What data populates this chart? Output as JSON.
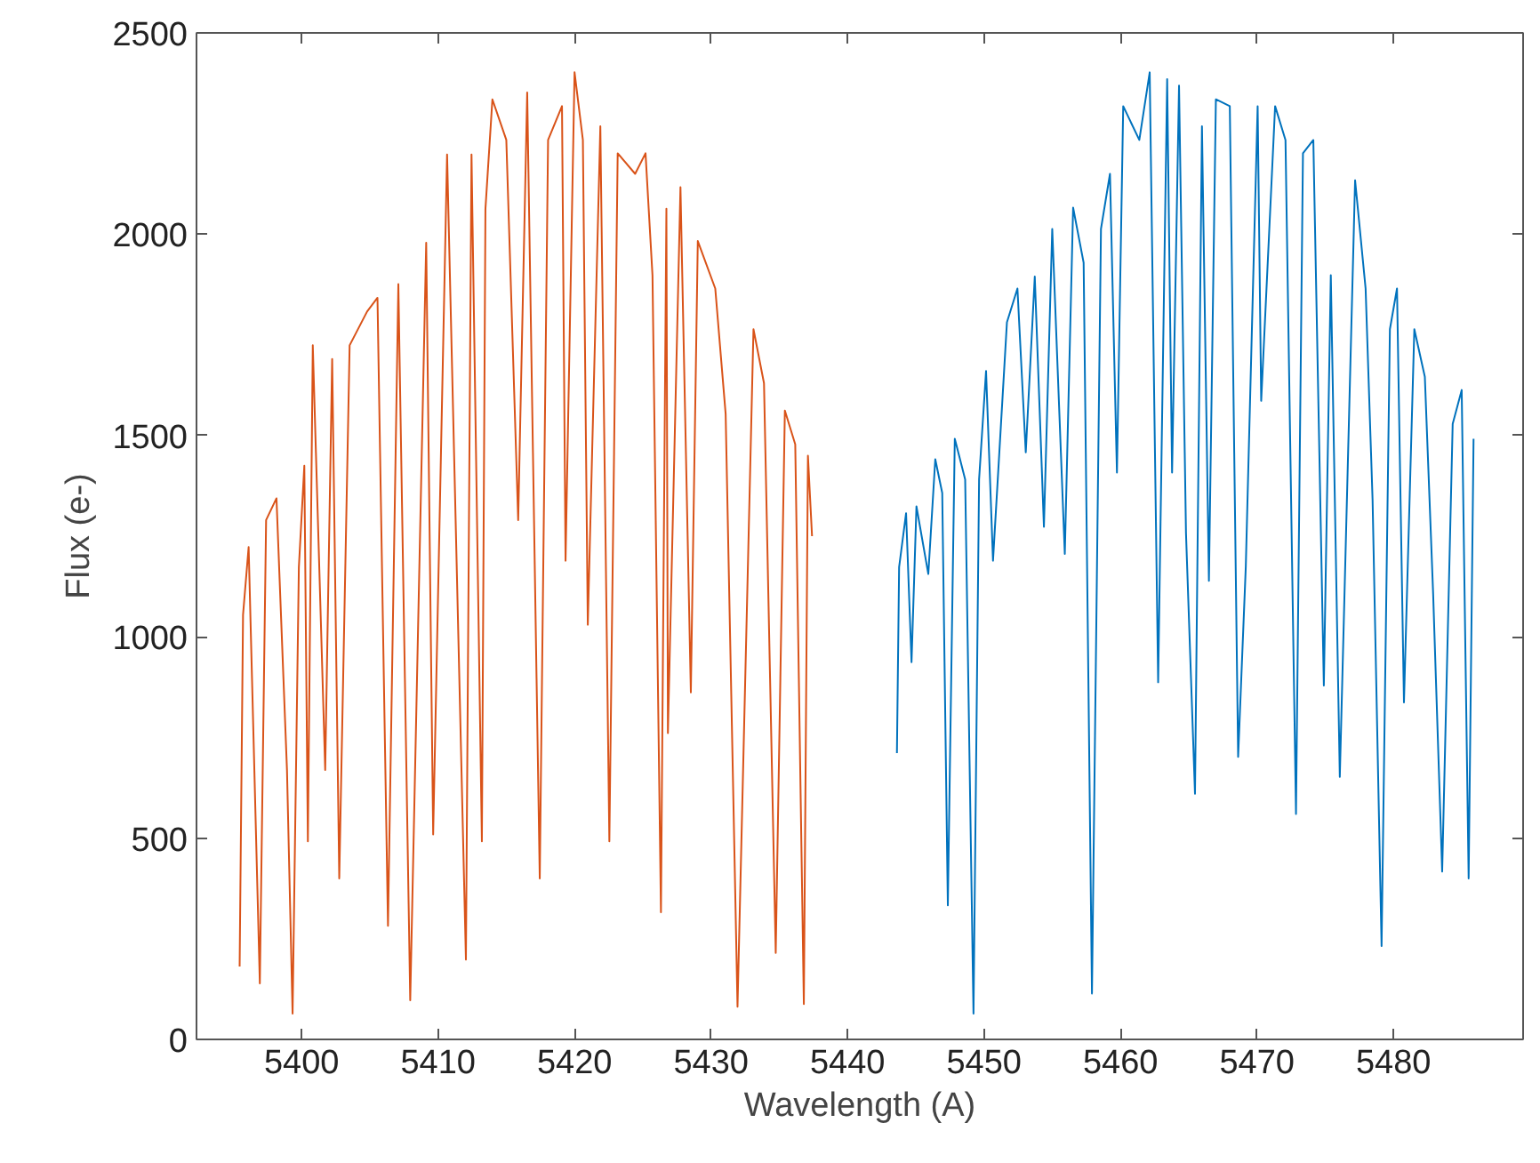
{
  "chart_data": {
    "type": "line",
    "xlabel": "Wavelength (A)",
    "ylabel": "Flux (e-)",
    "xlim": [
      5392.3,
      5489.5
    ],
    "ylim": [
      0,
      2500
    ],
    "xticks": [
      5400,
      5410,
      5420,
      5430,
      5440,
      5450,
      5460,
      5470,
      5480
    ],
    "yticks": [
      0,
      500,
      1000,
      1500,
      2000,
      2500
    ],
    "line_style": "solid",
    "series": [
      {
        "color": "#d95319",
        "x": [
          5395.46,
          5395.71,
          5396.12,
          5396.94,
          5397.4,
          5398.16,
          5398.93,
          5399.34,
          5399.8,
          5400.2,
          5400.46,
          5400.82,
          5401.73,
          5402.24,
          5402.76,
          5403.52,
          5404.8,
          5405.56,
          5406.33,
          5407.09,
          5407.96,
          5409.13,
          5409.64,
          5410.66,
          5412.04,
          5412.45,
          5413.21,
          5413.47,
          5413.98,
          5415.0,
          5415.87,
          5416.53,
          5417.45,
          5418.06,
          5419.08,
          5419.34,
          5420.0,
          5420.61,
          5420.97,
          5421.89,
          5422.55,
          5423.16,
          5424.44,
          5425.2,
          5425.71,
          5426.33,
          5426.73,
          5426.84,
          5427.76,
          5428.52,
          5429.03,
          5430.31,
          5431.07,
          5431.94,
          5433.11,
          5433.88,
          5434.74,
          5435.41,
          5436.17,
          5436.8,
          5437.1,
          5437.4
        ],
        "values": [
          181,
          1055,
          1223,
          139,
          1290,
          1344,
          669,
          64,
          1173,
          1425,
          492,
          1724,
          669,
          1690,
          400,
          1724,
          1808,
          1842,
          282,
          1876,
          97,
          1979,
          509,
          2198,
          198,
          2198,
          492,
          2063,
          2335,
          2234,
          1290,
          2352,
          400,
          2234,
          2318,
          1189,
          2402,
          2234,
          1030,
          2268,
          492,
          2201,
          2150,
          2201,
          1898,
          316,
          2063,
          761,
          2117,
          862,
          1983,
          1865,
          1554,
          81,
          1764,
          1630,
          215,
          1562,
          1478,
          88,
          1450,
          1250
        ]
      },
      {
        "color": "#0072bd",
        "x": [
          5443.62,
          5443.78,
          5444.29,
          5444.69,
          5445.05,
          5445.92,
          5446.43,
          5446.94,
          5447.35,
          5447.86,
          5448.62,
          5449.23,
          5449.64,
          5450.15,
          5450.66,
          5451.68,
          5452.45,
          5453.06,
          5453.72,
          5454.39,
          5455.0,
          5455.92,
          5456.53,
          5457.3,
          5457.91,
          5458.57,
          5459.23,
          5459.74,
          5460.2,
          5461.38,
          5462.14,
          5462.76,
          5463.42,
          5463.78,
          5464.29,
          5464.8,
          5465.46,
          5465.97,
          5466.48,
          5466.99,
          5468.01,
          5468.62,
          5469.18,
          5470.05,
          5470.31,
          5471.33,
          5472.09,
          5472.86,
          5473.37,
          5474.13,
          5474.9,
          5475.41,
          5476.07,
          5477.19,
          5477.96,
          5478.47,
          5479.13,
          5479.74,
          5480.26,
          5480.77,
          5481.53,
          5482.3,
          5482.91,
          5483.57,
          5484.34,
          5485.0,
          5485.51,
          5485.87
        ],
        "values": [
          711,
          1173,
          1307,
          937,
          1324,
          1156,
          1441,
          1357,
          333,
          1492,
          1391,
          64,
          1391,
          1660,
          1189,
          1781,
          1865,
          1458,
          1895,
          1273,
          2013,
          1206,
          2066,
          1929,
          114,
          2013,
          2150,
          1408,
          2318,
          2234,
          2402,
          887,
          2385,
          1408,
          2369,
          1257,
          610,
          2268,
          1139,
          2335,
          2318,
          702,
          1173,
          2318,
          1586,
          2318,
          2234,
          560,
          2201,
          2234,
          879,
          1898,
          652,
          2134,
          1865,
          1341,
          232,
          1764,
          1865,
          837,
          1764,
          1646,
          1105,
          417,
          1529,
          1613,
          400,
          1492
        ]
      }
    ]
  }
}
